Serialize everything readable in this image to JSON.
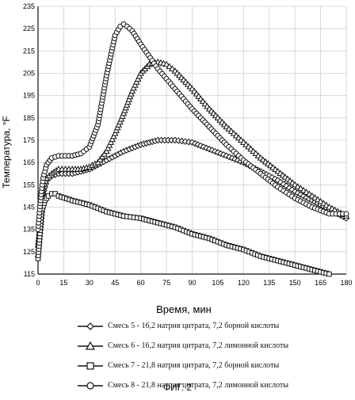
{
  "chart_data": {
    "type": "line",
    "title": "",
    "xlabel": "Время, мин",
    "ylabel": "Температура, °F",
    "xlim": [
      0,
      180
    ],
    "ylim": [
      115,
      235
    ],
    "xticks": [
      0,
      15,
      30,
      45,
      60,
      75,
      90,
      105,
      120,
      135,
      150,
      165,
      180
    ],
    "yticks": [
      115,
      125,
      135,
      145,
      155,
      165,
      175,
      185,
      195,
      205,
      215,
      225,
      235
    ],
    "grid": true,
    "legend_position": "bottom",
    "series": [
      {
        "name": "Смесь 5 - 16,2 натрия цитрата, 7,2 борной кислоты",
        "marker": "diamond",
        "x": [
          0,
          1,
          2,
          3,
          5,
          8,
          12,
          16,
          20,
          25,
          30,
          40,
          50,
          60,
          70,
          80,
          90,
          100,
          110,
          120,
          130,
          140,
          150,
          160,
          170,
          180
        ],
        "y": [
          123,
          132,
          140,
          151,
          157,
          159,
          160,
          160,
          160,
          161,
          162,
          166,
          170,
          173,
          175,
          175,
          174,
          171,
          168,
          165,
          161,
          157,
          152,
          148,
          144,
          140
        ]
      },
      {
        "name": "Смесь 6 - 16,2 натрия цитрата, 7,2 лимонной кислоты",
        "marker": "triangle",
        "x": [
          0,
          1,
          2,
          3,
          5,
          8,
          12,
          16,
          20,
          25,
          30,
          35,
          40,
          45,
          50,
          55,
          60,
          65,
          70,
          75,
          80,
          90,
          100,
          110,
          120,
          130,
          140,
          150,
          160,
          170,
          180
        ],
        "y": [
          128,
          136,
          146,
          154,
          158,
          160,
          162,
          162,
          162,
          162,
          163,
          165,
          170,
          178,
          187,
          197,
          205,
          209,
          210,
          209,
          206,
          198,
          189,
          181,
          174,
          167,
          161,
          155,
          150,
          145,
          141
        ]
      },
      {
        "name": "Смесь 7 - 21,8 натрия цитрата, 7,2 борной кислоты",
        "marker": "square",
        "x": [
          0,
          2,
          4,
          6,
          8,
          10,
          12,
          20,
          30,
          40,
          50,
          60,
          70,
          80,
          90,
          100,
          110,
          120,
          130,
          140,
          150,
          160,
          170
        ],
        "y": [
          122,
          143,
          148,
          150,
          151,
          151,
          150,
          148,
          146,
          143,
          141,
          140,
          138,
          136,
          133,
          131,
          128,
          126,
          123,
          121,
          119,
          117,
          115
        ]
      },
      {
        "name": "Смесь 8 - 21,8 натрия цитрата, 7,2 лимонной кислоты",
        "marker": "circle",
        "x": [
          0,
          1,
          2,
          3,
          5,
          8,
          12,
          16,
          20,
          25,
          30,
          35,
          40,
          45,
          48,
          50,
          52,
          55,
          60,
          70,
          80,
          90,
          100,
          110,
          120,
          130,
          140,
          150,
          160,
          170,
          180
        ],
        "y": [
          135,
          144,
          152,
          158,
          164,
          167,
          168,
          168,
          168,
          169,
          172,
          182,
          204,
          222,
          226,
          227,
          226,
          224,
          218,
          207,
          198,
          189,
          181,
          173,
          166,
          160,
          154,
          149,
          145,
          142,
          142
        ]
      }
    ]
  },
  "caption": "ФИГ. 2"
}
